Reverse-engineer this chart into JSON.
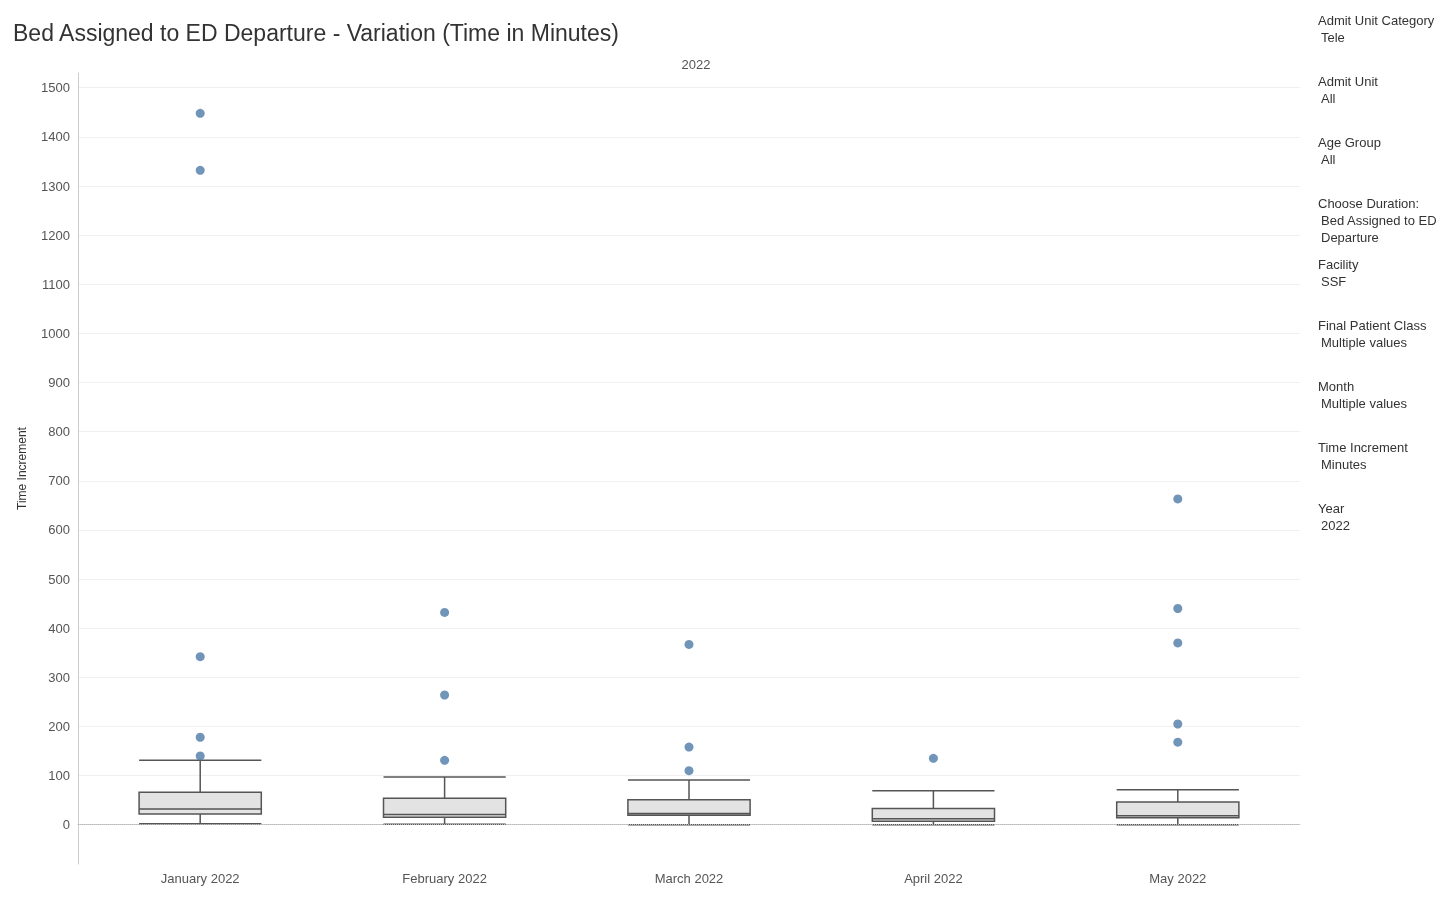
{
  "chart_data": {
    "type": "box",
    "title": "Bed Assigned to ED Departure - Variation (Time in Minutes)",
    "subtitle": "2022",
    "ylabel": "Time Increment",
    "categories": [
      "January 2022",
      "February 2022",
      "March 2022",
      "April 2022",
      "May 2022"
    ],
    "boxes": [
      {
        "low": 2,
        "q1": 22,
        "median": 32,
        "q3": 66,
        "high": 131
      },
      {
        "low": 1,
        "q1": 15,
        "median": 21,
        "q3": 54,
        "high": 97
      },
      {
        "low": 0,
        "q1": 19,
        "median": 23,
        "q3": 51,
        "high": 91
      },
      {
        "low": 0,
        "q1": 7,
        "median": 12,
        "q3": 33,
        "high": 69
      },
      {
        "low": 0,
        "q1": 14,
        "median": 18,
        "q3": 46,
        "high": 71
      }
    ],
    "color": "#e3e3e3",
    "series": [
      {
        "type": "scatter",
        "color": "#4e79a7",
        "x": [
          "January 2022",
          "January 2022",
          "January 2022",
          "January 2022",
          "January 2022",
          "February 2022",
          "February 2022",
          "February 2022",
          "March 2022",
          "March 2022",
          "March 2022",
          "April 2022",
          "May 2022",
          "May 2022",
          "May 2022",
          "May 2022",
          "May 2022"
        ],
        "values": [
          1448,
          1332,
          342,
          178,
          140,
          432,
          264,
          131,
          367,
          158,
          110,
          135,
          663,
          440,
          370,
          205,
          168
        ]
      }
    ],
    "ylim": [
      -80,
      1530
    ],
    "yticks": [
      0,
      100,
      200,
      300,
      400,
      500,
      600,
      700,
      800,
      900,
      1000,
      1100,
      1200,
      1300,
      1400,
      1500
    ],
    "grid": "y",
    "marker": "circle",
    "ref_lines": [
      {
        "axis": "y",
        "value": 0,
        "line_style": "dotted",
        "color": "#bbbbbb"
      }
    ],
    "annotations": [
      "Admit Unit Category\nTele",
      "Admit Unit\nAll",
      "Age Group\nAll",
      "Choose Duration:\nBed Assigned to ED\nDeparture",
      "Facility\nSSF",
      "Final Patient Class\nMultiple values",
      "Month\nMultiple values",
      "Time Increment\nMinutes",
      "Year\n2022"
    ]
  }
}
